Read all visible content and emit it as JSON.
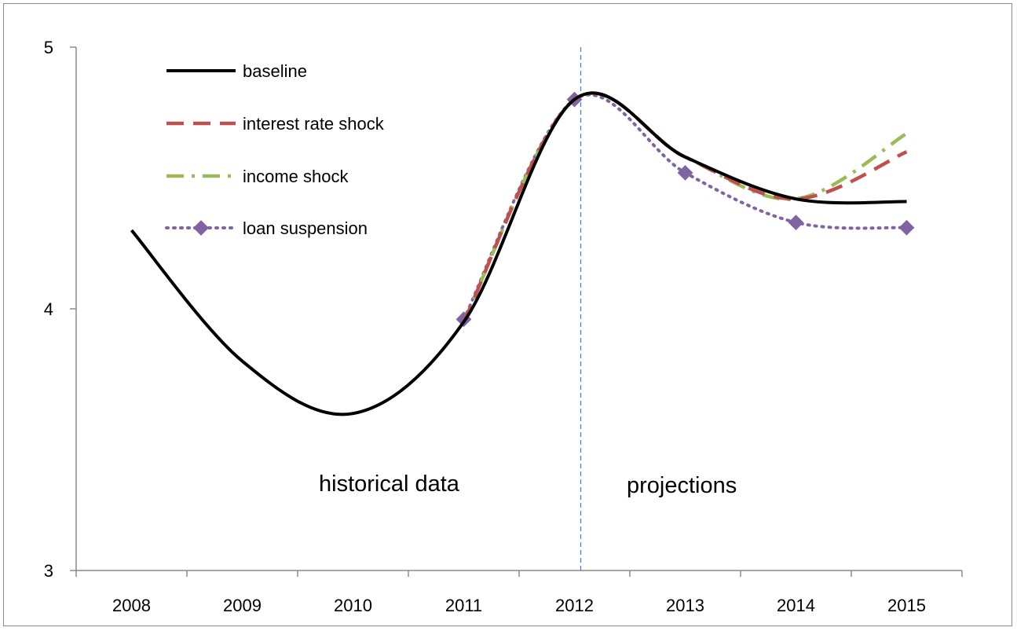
{
  "chart_data": {
    "type": "line",
    "categories": [
      "2008",
      "2009",
      "2010",
      "2011",
      "2012",
      "2013",
      "2014",
      "2015"
    ],
    "ylim": [
      3,
      5
    ],
    "yticks": [
      "3",
      "4",
      "5"
    ],
    "grid": false,
    "legend_position": "top-left",
    "series": [
      {
        "name": "baseline",
        "values": [
          4.3,
          3.8,
          3.6,
          3.95,
          4.8,
          4.58,
          4.42,
          4.41
        ],
        "color": "#000000",
        "style": "solid"
      },
      {
        "name": "interest rate shock",
        "values": [
          null,
          null,
          null,
          3.95,
          4.8,
          4.58,
          4.42,
          4.6
        ],
        "color": "#c0504d",
        "style": "dash"
      },
      {
        "name": "income shock",
        "values": [
          null,
          null,
          null,
          3.95,
          4.8,
          4.58,
          4.42,
          4.67
        ],
        "color": "#9bbb59",
        "style": "dashdot"
      },
      {
        "name": "loan suspension",
        "values": [
          null,
          null,
          null,
          3.96,
          4.8,
          4.52,
          4.33,
          4.31
        ],
        "color": "#8064a2",
        "style": "dot-marker"
      }
    ],
    "annotations": [
      {
        "text": "historical data"
      },
      {
        "text": "projections"
      }
    ],
    "divider_after_category": "2012"
  }
}
